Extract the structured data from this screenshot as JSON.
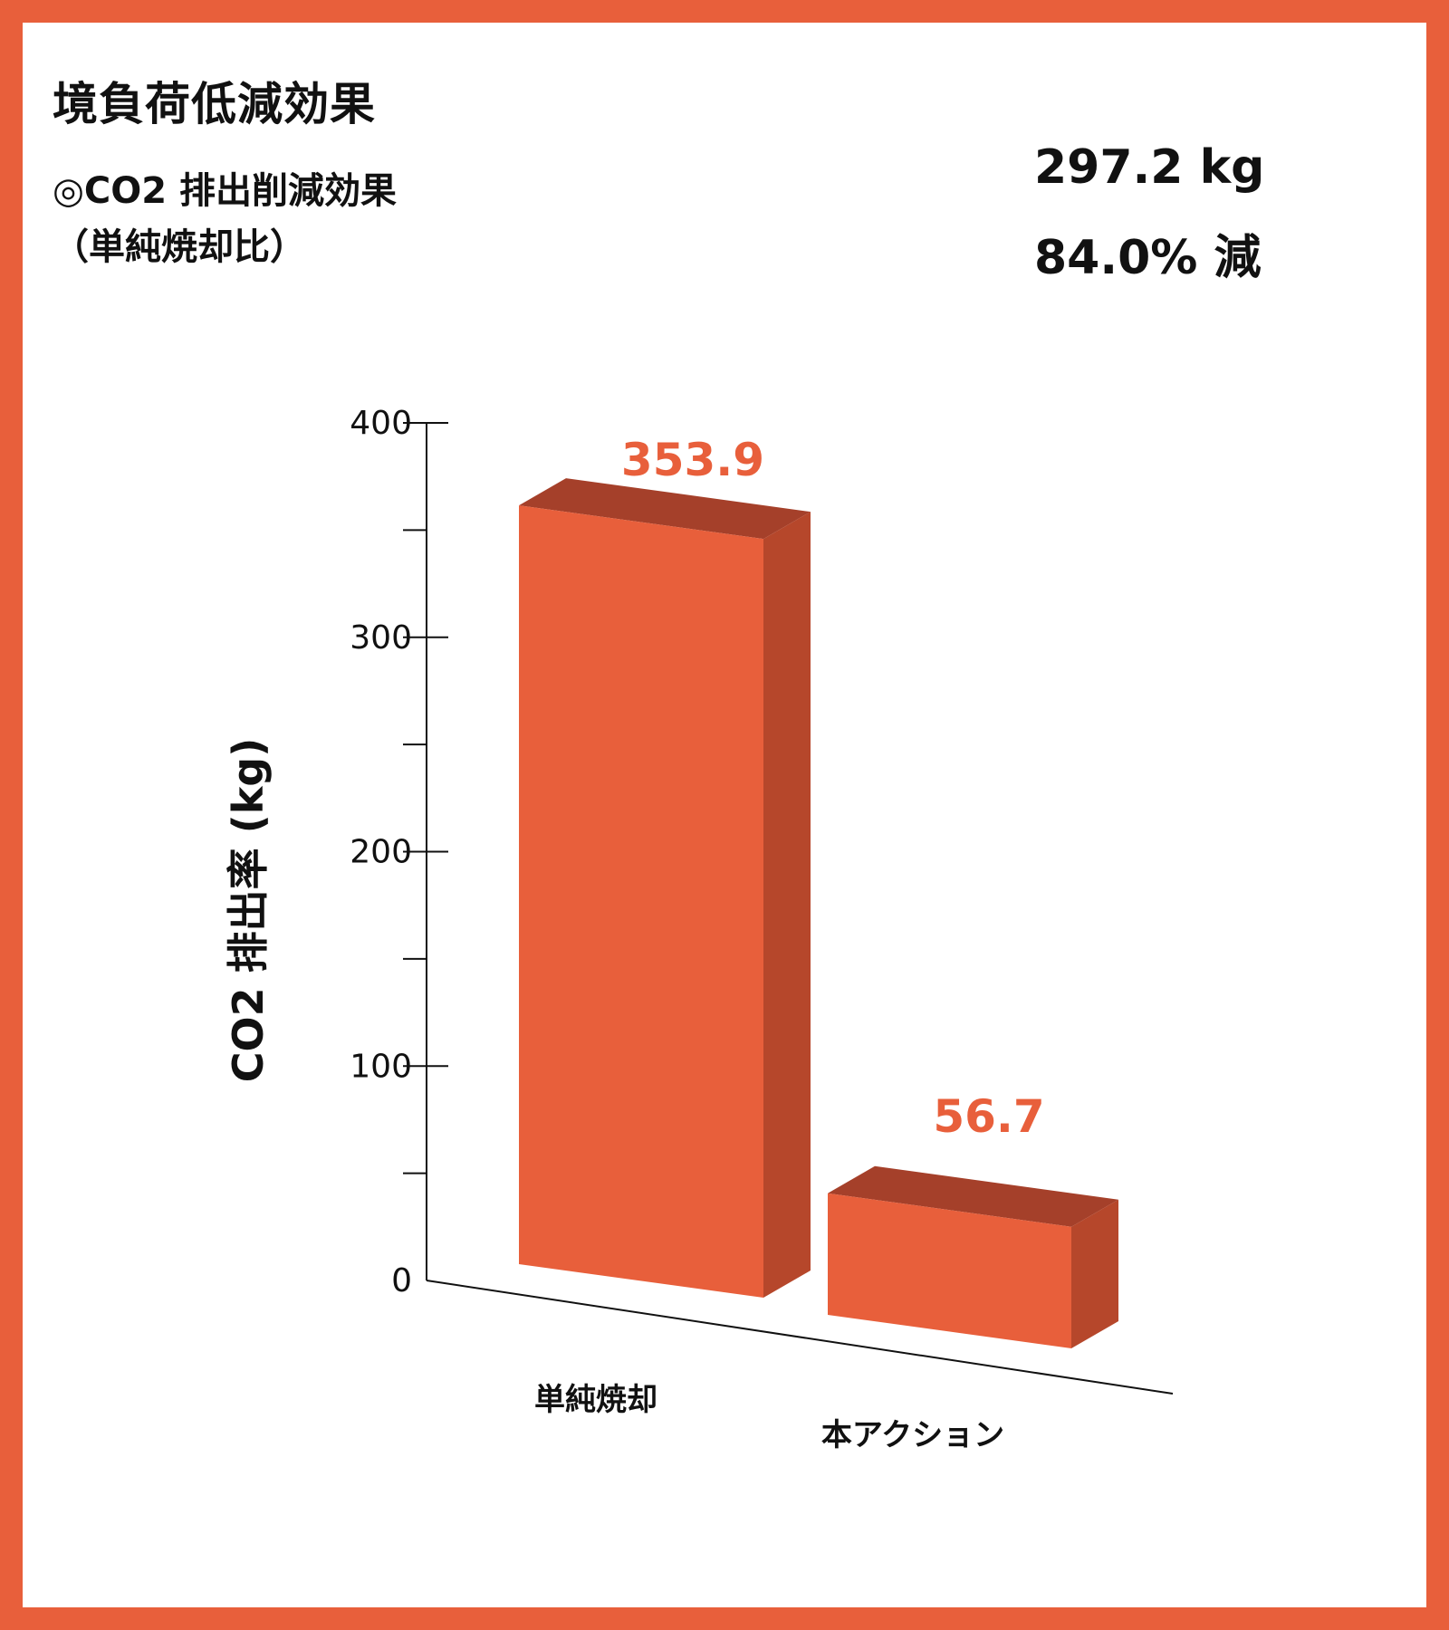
{
  "header": {
    "title": "境負荷低減効果",
    "subtitle_line1": "◎CO2 排出削減効果",
    "subtitle_line2": "（単純焼却比）",
    "reduction_amount": "297.2 kg",
    "reduction_rate": "84.0% 減"
  },
  "colors": {
    "frame": "#e85f3b",
    "bar_front": "#e85f3b",
    "bar_side": "#b6472b",
    "bar_top": "#a5402a",
    "value_label": "#e85f3b"
  },
  "chart_data": {
    "type": "bar",
    "categories": [
      "単純焼却",
      "本アクション"
    ],
    "values": [
      353.9,
      56.7
    ],
    "value_labels": [
      "353.9",
      "56.7"
    ],
    "ylabel": "CO2 排出率 (kg)",
    "ylim": [
      0,
      400
    ],
    "yticks": [
      0,
      100,
      200,
      300,
      400
    ],
    "ytick_labels": [
      "0",
      "100",
      "200",
      "300",
      "400"
    ],
    "minor_ticks": [
      50,
      150,
      250,
      350
    ],
    "style": "3d-perspective",
    "grid": false,
    "legend": "none"
  }
}
